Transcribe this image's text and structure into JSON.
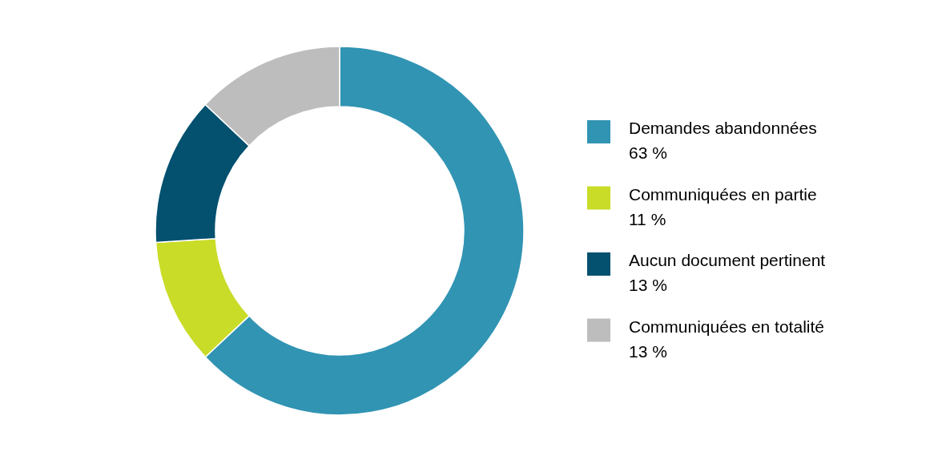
{
  "chart_data": {
    "type": "donut",
    "categories": [
      "Demandes abandonnées",
      "Communiquées en partie",
      "Aucun document pertinent",
      "Communiquées en totalité"
    ],
    "values": [
      63,
      11,
      13,
      13
    ],
    "value_labels": [
      "63 %",
      "11 %",
      "13 %",
      "13 %"
    ],
    "colors": [
      "#3194b3",
      "#c9dc28",
      "#03506f",
      "#bdbdbd"
    ],
    "legend": "right"
  }
}
